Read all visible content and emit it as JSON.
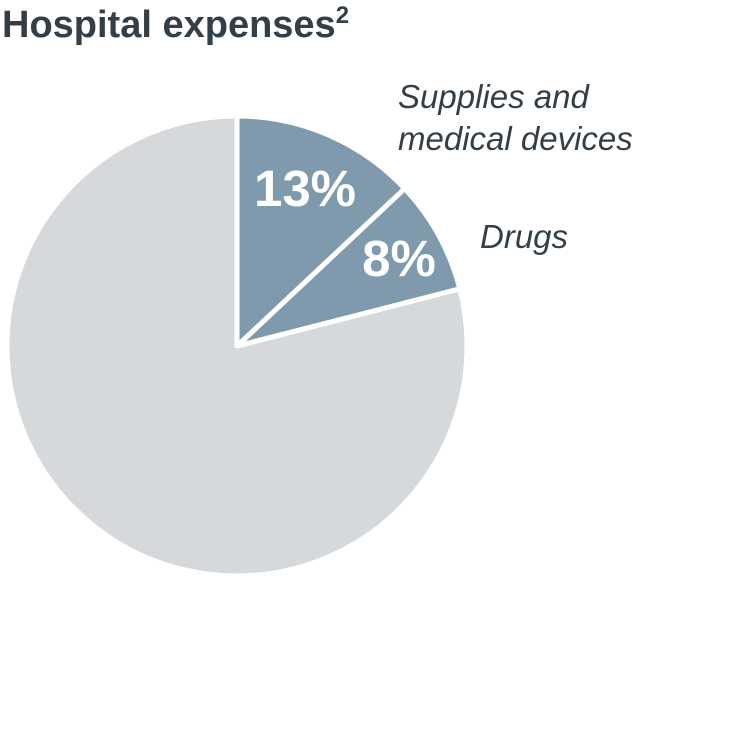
{
  "chart_data": {
    "type": "pie",
    "title": "Hospital expenses",
    "title_superscript": "2",
    "slices": [
      {
        "label_lines": [
          "Supplies and",
          "medical devices"
        ],
        "value": 13,
        "value_label": "13%",
        "color": "#7f9aad"
      },
      {
        "label_lines": [
          "Drugs"
        ],
        "value": 8,
        "value_label": "8%",
        "color": "#7f9aad"
      },
      {
        "label_lines": [],
        "value": 79,
        "value_label": "",
        "color": "#d6d9db"
      }
    ],
    "start": "12 o'clock",
    "direction": "clockwise",
    "separator_color": "#ffffff"
  }
}
